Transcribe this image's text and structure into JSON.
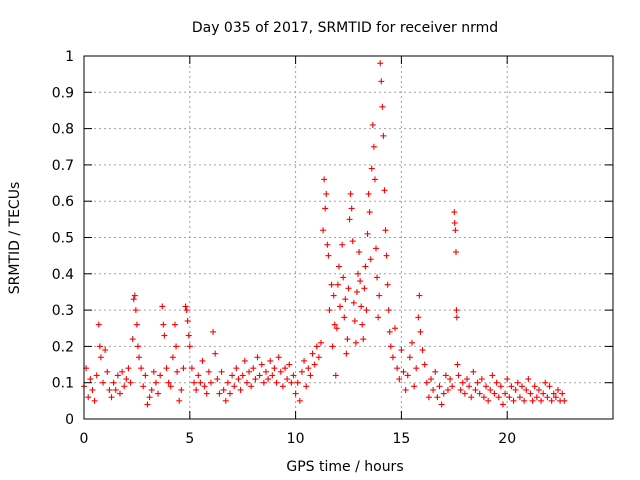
{
  "chart_data": {
    "type": "scatter",
    "title": "Day 035 of 2017, SRMTID for receiver nrmd",
    "xlabel": "GPS time / hours",
    "ylabel": "SRMTID / TECUs",
    "xlim": [
      0,
      25
    ],
    "ylim": [
      0,
      1
    ],
    "x_ticks": [
      0,
      5,
      10,
      15,
      20
    ],
    "y_ticks": [
      0,
      0.1,
      0.2,
      0.3,
      0.4,
      0.5,
      0.6,
      0.7,
      0.8,
      0.9,
      1
    ],
    "x_tick_labels": [
      "0",
      "5",
      "10",
      "15",
      "20"
    ],
    "y_tick_labels": [
      "0",
      "0.1",
      "0.2",
      "0.3",
      "0.4",
      "0.5",
      "0.6",
      "0.7",
      "0.8",
      "0.9",
      "1"
    ],
    "grid": true,
    "marker": "+",
    "color": "#ff0000",
    "series": [
      {
        "name": "SRMTID",
        "points": [
          [
            0.0,
            0.09
          ],
          [
            0.1,
            0.14
          ],
          [
            0.2,
            0.06
          ],
          [
            0.3,
            0.11
          ],
          [
            0.4,
            0.08
          ],
          [
            0.5,
            0.05
          ],
          [
            0.6,
            0.12
          ],
          [
            0.7,
            0.26
          ],
          [
            0.75,
            0.2
          ],
          [
            0.8,
            0.17
          ],
          [
            0.9,
            0.1
          ],
          [
            1.0,
            0.19
          ],
          [
            1.1,
            0.13
          ],
          [
            1.2,
            0.08
          ],
          [
            1.3,
            0.06
          ],
          [
            1.4,
            0.1
          ],
          [
            1.5,
            0.08
          ],
          [
            1.6,
            0.12
          ],
          [
            1.7,
            0.07
          ],
          [
            1.8,
            0.13
          ],
          [
            1.9,
            0.09
          ],
          [
            2.0,
            0.11
          ],
          [
            2.1,
            0.14
          ],
          [
            2.2,
            0.1
          ],
          [
            2.3,
            0.22
          ],
          [
            2.35,
            0.33
          ],
          [
            2.4,
            0.34
          ],
          [
            2.45,
            0.3
          ],
          [
            2.5,
            0.26
          ],
          [
            2.55,
            0.2
          ],
          [
            2.6,
            0.17
          ],
          [
            2.7,
            0.14
          ],
          [
            2.8,
            0.09
          ],
          [
            2.9,
            0.12
          ],
          [
            3.0,
            0.04
          ],
          [
            3.1,
            0.06
          ],
          [
            3.2,
            0.08
          ],
          [
            3.3,
            0.13
          ],
          [
            3.4,
            0.1
          ],
          [
            3.5,
            0.07
          ],
          [
            3.6,
            0.12
          ],
          [
            3.7,
            0.31
          ],
          [
            3.75,
            0.26
          ],
          [
            3.8,
            0.23
          ],
          [
            3.9,
            0.14
          ],
          [
            4.0,
            0.1
          ],
          [
            4.1,
            0.09
          ],
          [
            4.2,
            0.17
          ],
          [
            4.3,
            0.26
          ],
          [
            4.35,
            0.2
          ],
          [
            4.4,
            0.13
          ],
          [
            4.5,
            0.05
          ],
          [
            4.6,
            0.08
          ],
          [
            4.7,
            0.14
          ],
          [
            4.8,
            0.31
          ],
          [
            4.85,
            0.3
          ],
          [
            4.9,
            0.27
          ],
          [
            4.95,
            0.23
          ],
          [
            5.0,
            0.2
          ],
          [
            5.1,
            0.14
          ],
          [
            5.2,
            0.1
          ],
          [
            5.3,
            0.08
          ],
          [
            5.4,
            0.12
          ],
          [
            5.5,
            0.1
          ],
          [
            5.6,
            0.16
          ],
          [
            5.7,
            0.09
          ],
          [
            5.8,
            0.07
          ],
          [
            5.9,
            0.13
          ],
          [
            6.0,
            0.1
          ],
          [
            6.1,
            0.24
          ],
          [
            6.2,
            0.18
          ],
          [
            6.3,
            0.11
          ],
          [
            6.4,
            0.07
          ],
          [
            6.5,
            0.13
          ],
          [
            6.6,
            0.08
          ],
          [
            6.7,
            0.05
          ],
          [
            6.8,
            0.1
          ],
          [
            6.9,
            0.07
          ],
          [
            7.0,
            0.12
          ],
          [
            7.1,
            0.09
          ],
          [
            7.2,
            0.14
          ],
          [
            7.3,
            0.11
          ],
          [
            7.4,
            0.08
          ],
          [
            7.5,
            0.12
          ],
          [
            7.6,
            0.16
          ],
          [
            7.7,
            0.1
          ],
          [
            7.8,
            0.13
          ],
          [
            7.9,
            0.09
          ],
          [
            8.0,
            0.14
          ],
          [
            8.1,
            0.11
          ],
          [
            8.2,
            0.17
          ],
          [
            8.3,
            0.12
          ],
          [
            8.4,
            0.15
          ],
          [
            8.5,
            0.1
          ],
          [
            8.6,
            0.13
          ],
          [
            8.7,
            0.11
          ],
          [
            8.8,
            0.16
          ],
          [
            8.9,
            0.12
          ],
          [
            9.0,
            0.14
          ],
          [
            9.1,
            0.1
          ],
          [
            9.2,
            0.17
          ],
          [
            9.3,
            0.13
          ],
          [
            9.4,
            0.09
          ],
          [
            9.5,
            0.14
          ],
          [
            9.6,
            0.11
          ],
          [
            9.7,
            0.15
          ],
          [
            9.8,
            0.1
          ],
          [
            9.9,
            0.12
          ],
          [
            10.0,
            0.07
          ],
          [
            10.1,
            0.1
          ],
          [
            10.2,
            0.05
          ],
          [
            10.3,
            0.13
          ],
          [
            10.4,
            0.16
          ],
          [
            10.5,
            0.09
          ],
          [
            10.6,
            0.14
          ],
          [
            10.7,
            0.12
          ],
          [
            10.8,
            0.18
          ],
          [
            10.9,
            0.15
          ],
          [
            11.0,
            0.2
          ],
          [
            11.1,
            0.17
          ],
          [
            11.2,
            0.21
          ],
          [
            11.3,
            0.52
          ],
          [
            11.35,
            0.66
          ],
          [
            11.4,
            0.58
          ],
          [
            11.45,
            0.62
          ],
          [
            11.5,
            0.48
          ],
          [
            11.55,
            0.45
          ],
          [
            11.6,
            0.3
          ],
          [
            11.7,
            0.37
          ],
          [
            11.75,
            0.2
          ],
          [
            11.8,
            0.34
          ],
          [
            11.85,
            0.26
          ],
          [
            11.9,
            0.12
          ],
          [
            11.95,
            0.25
          ],
          [
            12.0,
            0.37
          ],
          [
            12.05,
            0.42
          ],
          [
            12.1,
            0.31
          ],
          [
            12.2,
            0.48
          ],
          [
            12.25,
            0.39
          ],
          [
            12.3,
            0.28
          ],
          [
            12.35,
            0.33
          ],
          [
            12.4,
            0.18
          ],
          [
            12.45,
            0.22
          ],
          [
            12.5,
            0.36
          ],
          [
            12.55,
            0.55
          ],
          [
            12.6,
            0.62
          ],
          [
            12.65,
            0.58
          ],
          [
            12.7,
            0.49
          ],
          [
            12.75,
            0.32
          ],
          [
            12.8,
            0.27
          ],
          [
            12.85,
            0.21
          ],
          [
            12.9,
            0.35
          ],
          [
            12.95,
            0.4
          ],
          [
            13.0,
            0.46
          ],
          [
            13.05,
            0.38
          ],
          [
            13.1,
            0.31
          ],
          [
            13.15,
            0.26
          ],
          [
            13.2,
            0.22
          ],
          [
            13.25,
            0.36
          ],
          [
            13.3,
            0.42
          ],
          [
            13.35,
            0.3
          ],
          [
            13.4,
            0.51
          ],
          [
            13.45,
            0.62
          ],
          [
            13.5,
            0.57
          ],
          [
            13.55,
            0.44
          ],
          [
            13.6,
            0.69
          ],
          [
            13.65,
            0.81
          ],
          [
            13.7,
            0.75
          ],
          [
            13.75,
            0.66
          ],
          [
            13.8,
            0.47
          ],
          [
            13.85,
            0.39
          ],
          [
            13.9,
            0.28
          ],
          [
            13.95,
            0.34
          ],
          [
            14.0,
            0.98
          ],
          [
            14.05,
            0.93
          ],
          [
            14.1,
            0.86
          ],
          [
            14.15,
            0.78
          ],
          [
            14.2,
            0.63
          ],
          [
            14.25,
            0.52
          ],
          [
            14.3,
            0.45
          ],
          [
            14.35,
            0.37
          ],
          [
            14.4,
            0.3
          ],
          [
            14.45,
            0.24
          ],
          [
            14.5,
            0.2
          ],
          [
            14.6,
            0.17
          ],
          [
            14.7,
            0.25
          ],
          [
            14.8,
            0.14
          ],
          [
            14.9,
            0.11
          ],
          [
            15.0,
            0.19
          ],
          [
            15.1,
            0.13
          ],
          [
            15.2,
            0.08
          ],
          [
            15.3,
            0.12
          ],
          [
            15.4,
            0.17
          ],
          [
            15.5,
            0.21
          ],
          [
            15.6,
            0.09
          ],
          [
            15.7,
            0.14
          ],
          [
            15.8,
            0.28
          ],
          [
            15.85,
            0.34
          ],
          [
            15.9,
            0.24
          ],
          [
            16.0,
            0.19
          ],
          [
            16.1,
            0.15
          ],
          [
            16.2,
            0.1
          ],
          [
            16.3,
            0.06
          ],
          [
            16.4,
            0.11
          ],
          [
            16.5,
            0.08
          ],
          [
            16.6,
            0.13
          ],
          [
            16.7,
            0.06
          ],
          [
            16.8,
            0.09
          ],
          [
            16.9,
            0.04
          ],
          [
            17.0,
            0.07
          ],
          [
            17.1,
            0.12
          ],
          [
            17.2,
            0.08
          ],
          [
            17.3,
            0.11
          ],
          [
            17.4,
            0.09
          ],
          [
            17.5,
            0.57
          ],
          [
            17.52,
            0.54
          ],
          [
            17.55,
            0.52
          ],
          [
            17.58,
            0.46
          ],
          [
            17.6,
            0.3
          ],
          [
            17.62,
            0.28
          ],
          [
            17.65,
            0.15
          ],
          [
            17.7,
            0.12
          ],
          [
            17.8,
            0.08
          ],
          [
            17.9,
            0.1
          ],
          [
            18.0,
            0.07
          ],
          [
            18.1,
            0.11
          ],
          [
            18.2,
            0.09
          ],
          [
            18.3,
            0.06
          ],
          [
            18.4,
            0.13
          ],
          [
            18.5,
            0.08
          ],
          [
            18.6,
            0.1
          ],
          [
            18.7,
            0.07
          ],
          [
            18.8,
            0.11
          ],
          [
            18.9,
            0.06
          ],
          [
            19.0,
            0.09
          ],
          [
            19.1,
            0.05
          ],
          [
            19.2,
            0.08
          ],
          [
            19.3,
            0.12
          ],
          [
            19.4,
            0.07
          ],
          [
            19.5,
            0.1
          ],
          [
            19.6,
            0.06
          ],
          [
            19.7,
            0.09
          ],
          [
            19.8,
            0.04
          ],
          [
            19.9,
            0.07
          ],
          [
            20.0,
            0.11
          ],
          [
            20.1,
            0.06
          ],
          [
            20.2,
            0.09
          ],
          [
            20.3,
            0.05
          ],
          [
            20.4,
            0.08
          ],
          [
            20.5,
            0.1
          ],
          [
            20.6,
            0.06
          ],
          [
            20.7,
            0.09
          ],
          [
            20.8,
            0.05
          ],
          [
            20.9,
            0.08
          ],
          [
            21.0,
            0.11
          ],
          [
            21.1,
            0.07
          ],
          [
            21.2,
            0.05
          ],
          [
            21.3,
            0.09
          ],
          [
            21.4,
            0.06
          ],
          [
            21.5,
            0.08
          ],
          [
            21.6,
            0.05
          ],
          [
            21.7,
            0.07
          ],
          [
            21.8,
            0.1
          ],
          [
            21.9,
            0.06
          ],
          [
            22.0,
            0.09
          ],
          [
            22.1,
            0.05
          ],
          [
            22.2,
            0.07
          ],
          [
            22.3,
            0.06
          ],
          [
            22.4,
            0.08
          ],
          [
            22.5,
            0.05
          ],
          [
            22.6,
            0.07
          ],
          [
            22.7,
            0.05
          ]
        ]
      }
    ]
  }
}
